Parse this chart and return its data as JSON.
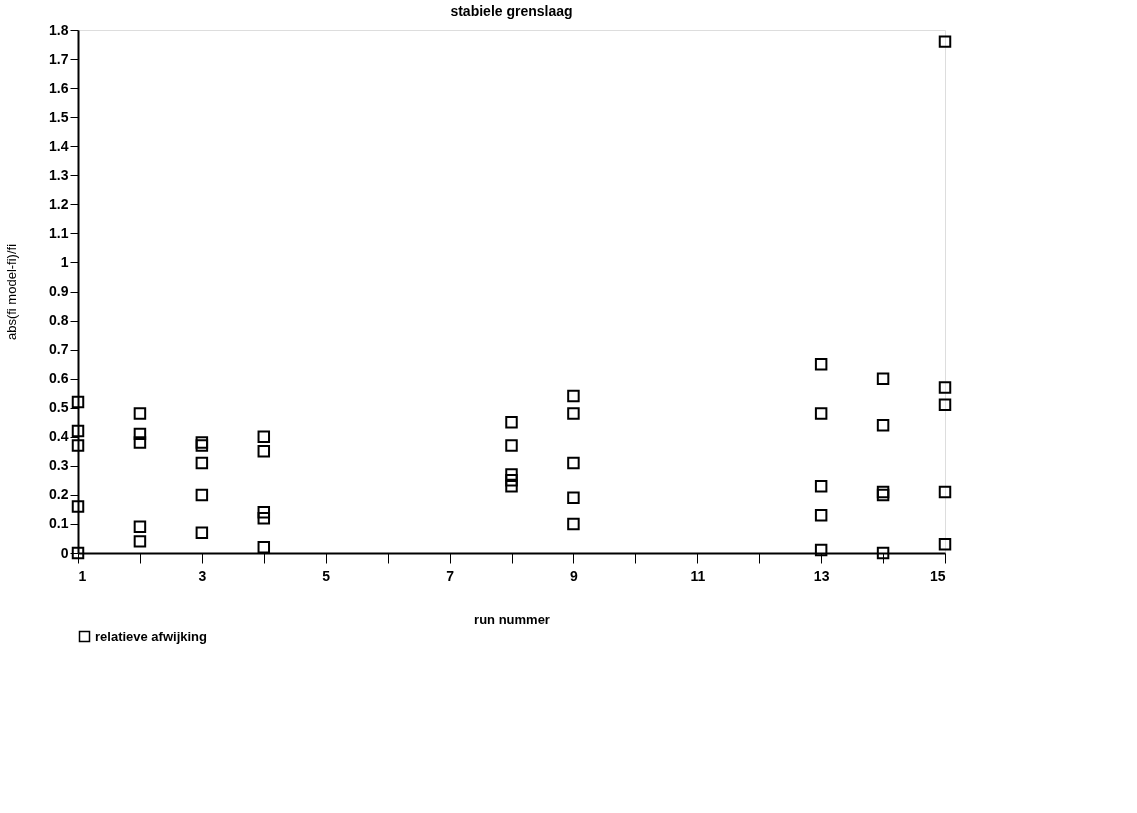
{
  "chart_data": {
    "type": "scatter",
    "title": "stabiele grenslaag",
    "xlabel": "run nummer",
    "ylabel": "abs(fi model-fi)/fi",
    "series": [
      {
        "name": "relatieve afwijking",
        "color": "#000000",
        "x": [
          1,
          1,
          1,
          1,
          1,
          2,
          2,
          2,
          2,
          2,
          3,
          3,
          3,
          3,
          3,
          4,
          4,
          4,
          4,
          4,
          8,
          8,
          8,
          8,
          8,
          9,
          9,
          9,
          9,
          9,
          13,
          13,
          13,
          13,
          13,
          14,
          14,
          14,
          14,
          14,
          15,
          15,
          15,
          15,
          15
        ],
        "values": [
          0.52,
          0.42,
          0.37,
          0.16,
          0.0,
          0.48,
          0.41,
          0.38,
          0.09,
          0.04,
          0.38,
          0.37,
          0.31,
          0.2,
          0.07,
          0.4,
          0.35,
          0.14,
          0.12,
          0.02,
          0.45,
          0.37,
          0.27,
          0.25,
          0.23,
          0.54,
          0.48,
          0.31,
          0.19,
          0.1,
          0.65,
          0.48,
          0.23,
          0.13,
          0.01,
          0.6,
          0.44,
          0.21,
          0.2,
          0.0,
          1.76,
          0.57,
          0.51,
          0.21,
          0.03
        ]
      }
    ],
    "xlim": [
      1,
      15
    ],
    "xticks": [
      1,
      {
        "value": 2,
        "label": null
      },
      3,
      {
        "value": 4,
        "label": null
      },
      5,
      {
        "value": 6,
        "label": null
      },
      7,
      {
        "value": 8,
        "label": null
      },
      9,
      {
        "value": 10,
        "label": null
      },
      11,
      {
        "value": 12,
        "label": null
      },
      13,
      {
        "value": 14,
        "label": null
      },
      15
    ],
    "ylim": [
      0,
      1.8
    ],
    "yticks": [
      0,
      0.1,
      0.2,
      0.3,
      0.4,
      0.5,
      0.6,
      0.7,
      0.8,
      0.9,
      1,
      1.1,
      1.2,
      1.3,
      1.4,
      1.5,
      1.6,
      1.7,
      1.8
    ],
    "marker": "square",
    "legend": "bottom",
    "grid": false
  }
}
